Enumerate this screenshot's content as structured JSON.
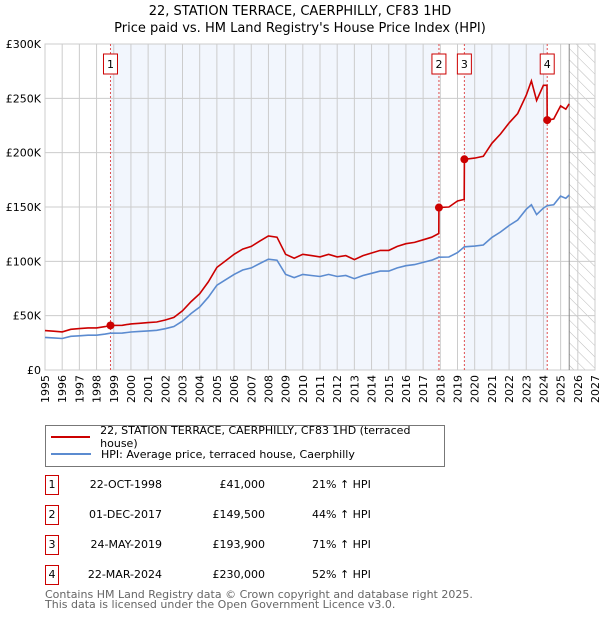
{
  "chart_data": {
    "type": "line",
    "title": "22, STATION TERRACE, CAERPHILLY, CF83 1HD",
    "subtitle": "Price paid vs. HM Land Registry's House Price Index (HPI)",
    "xlim": [
      1995,
      2027
    ],
    "ylim": [
      0,
      300000
    ],
    "x_ticks": [
      "1995",
      "1996",
      "1997",
      "1998",
      "1999",
      "2000",
      "2001",
      "2002",
      "2003",
      "2004",
      "2005",
      "2006",
      "2007",
      "2008",
      "2009",
      "2010",
      "2011",
      "2012",
      "2013",
      "2014",
      "2015",
      "2016",
      "2017",
      "2018",
      "2019",
      "2020",
      "2021",
      "2022",
      "2023",
      "2024",
      "2025",
      "2026",
      "2027"
    ],
    "y_ticks": [
      {
        "v": 0,
        "label": "£0"
      },
      {
        "v": 50000,
        "label": "£50K"
      },
      {
        "v": 100000,
        "label": "£100K"
      },
      {
        "v": 150000,
        "label": "£150K"
      },
      {
        "v": 200000,
        "label": "£200K"
      },
      {
        "v": 250000,
        "label": "£250K"
      },
      {
        "v": 300000,
        "label": "£300K"
      }
    ],
    "grid": true,
    "forecast_from": 2025.5,
    "series": [
      {
        "name": "22, STATION TERRACE, CAERPHILLY, CF83 1HD (terraced house)",
        "color": "#cc0000",
        "points": [
          [
            1995,
            36.3
          ],
          [
            1995.5,
            35.7
          ],
          [
            1996,
            35.1
          ],
          [
            1996.5,
            37.5
          ],
          [
            1997,
            38.1
          ],
          [
            1997.5,
            38.7
          ],
          [
            1998,
            38.7
          ],
          [
            1998.5,
            39.9
          ],
          [
            1998.8,
            41
          ],
          [
            1999.5,
            41.1
          ],
          [
            2000,
            42.4
          ],
          [
            2000.5,
            43
          ],
          [
            2001,
            43.6
          ],
          [
            2001.5,
            44.2
          ],
          [
            2002,
            46
          ],
          [
            2002.5,
            48.4
          ],
          [
            2003,
            54.5
          ],
          [
            2003.5,
            62.9
          ],
          [
            2004,
            70.2
          ],
          [
            2004.5,
            81.1
          ],
          [
            2005,
            94.4
          ],
          [
            2005.5,
            100.4
          ],
          [
            2006,
            106.5
          ],
          [
            2006.5,
            111.3
          ],
          [
            2007,
            113.7
          ],
          [
            2007.5,
            118.6
          ],
          [
            2008,
            123.4
          ],
          [
            2008.5,
            122.2
          ],
          [
            2009,
            106.5
          ],
          [
            2009.5,
            102.9
          ],
          [
            2010,
            106.5
          ],
          [
            2010.5,
            105.3
          ],
          [
            2011,
            104.1
          ],
          [
            2011.5,
            106.5
          ],
          [
            2012,
            104.1
          ],
          [
            2012.5,
            105.3
          ],
          [
            2013,
            101.6
          ],
          [
            2013.5,
            105.3
          ],
          [
            2014,
            107.7
          ],
          [
            2014.5,
            110.1
          ],
          [
            2015,
            110.1
          ],
          [
            2015.5,
            113.7
          ],
          [
            2016,
            116.2
          ],
          [
            2016.5,
            117.4
          ],
          [
            2017,
            119.8
          ],
          [
            2017.5,
            122.2
          ],
          [
            2017.91,
            125.6
          ],
          [
            2017.92,
            149.5
          ],
          [
            2018.5,
            150
          ],
          [
            2019,
            155.5
          ],
          [
            2019.39,
            157
          ],
          [
            2019.4,
            193.9
          ],
          [
            2020,
            195
          ],
          [
            2020.5,
            196.7
          ],
          [
            2021,
            208.6
          ],
          [
            2021.5,
            217.2
          ],
          [
            2022,
            227.4
          ],
          [
            2022.5,
            236
          ],
          [
            2023,
            253
          ],
          [
            2023.3,
            266
          ],
          [
            2023.6,
            248
          ],
          [
            2024,
            262
          ],
          [
            2024.21,
            262
          ],
          [
            2024.22,
            230
          ],
          [
            2024.6,
            231
          ],
          [
            2025,
            243
          ],
          [
            2025.3,
            240
          ],
          [
            2025.5,
            245
          ]
        ]
      },
      {
        "name": "HPI: Average price, terraced house, Caerphilly",
        "color": "#5b8bd0",
        "points": [
          [
            1995,
            30
          ],
          [
            1995.5,
            29.5
          ],
          [
            1996,
            29
          ],
          [
            1996.5,
            31
          ],
          [
            1997,
            31.5
          ],
          [
            1997.5,
            32
          ],
          [
            1998,
            32
          ],
          [
            1998.5,
            33
          ],
          [
            1998.8,
            33.9
          ],
          [
            1999.5,
            34
          ],
          [
            2000,
            35
          ],
          [
            2000.5,
            35.5
          ],
          [
            2001,
            36
          ],
          [
            2001.5,
            36.5
          ],
          [
            2002,
            38
          ],
          [
            2002.5,
            40
          ],
          [
            2003,
            45
          ],
          [
            2003.5,
            52
          ],
          [
            2004,
            58
          ],
          [
            2004.5,
            67
          ],
          [
            2005,
            78
          ],
          [
            2005.5,
            83
          ],
          [
            2006,
            88
          ],
          [
            2006.5,
            92
          ],
          [
            2007,
            94
          ],
          [
            2007.5,
            98
          ],
          [
            2008,
            102
          ],
          [
            2008.5,
            101
          ],
          [
            2009,
            88
          ],
          [
            2009.5,
            85
          ],
          [
            2010,
            88
          ],
          [
            2010.5,
            87
          ],
          [
            2011,
            86
          ],
          [
            2011.5,
            88
          ],
          [
            2012,
            86
          ],
          [
            2012.5,
            87
          ],
          [
            2013,
            84
          ],
          [
            2013.5,
            87
          ],
          [
            2014,
            89
          ],
          [
            2014.5,
            91
          ],
          [
            2015,
            91
          ],
          [
            2015.5,
            94
          ],
          [
            2016,
            96
          ],
          [
            2016.5,
            97
          ],
          [
            2017,
            99
          ],
          [
            2017.5,
            101
          ],
          [
            2017.92,
            103.8
          ],
          [
            2018.5,
            104
          ],
          [
            2019,
            108
          ],
          [
            2019.4,
            113.4
          ],
          [
            2020,
            114
          ],
          [
            2020.5,
            115
          ],
          [
            2021,
            122
          ],
          [
            2021.5,
            127
          ],
          [
            2022,
            133
          ],
          [
            2022.5,
            138
          ],
          [
            2023,
            148
          ],
          [
            2023.3,
            152
          ],
          [
            2023.6,
            143
          ],
          [
            2024,
            149
          ],
          [
            2024.22,
            151.3
          ],
          [
            2024.6,
            152
          ],
          [
            2025,
            160
          ],
          [
            2025.3,
            158
          ],
          [
            2025.5,
            161
          ]
        ]
      }
    ],
    "sales": [
      {
        "num": "1",
        "x": 1998.81,
        "price": 41000,
        "date": "22-OCT-1998",
        "price_label": "£41,000",
        "hpi": "21% ↑ HPI"
      },
      {
        "num": "2",
        "x": 2017.92,
        "price": 149500,
        "date": "01-DEC-2017",
        "price_label": "£149,500",
        "hpi": "44% ↑ HPI"
      },
      {
        "num": "3",
        "x": 2019.4,
        "price": 193900,
        "date": "24-MAY-2019",
        "price_label": "£193,900",
        "hpi": "71% ↑ HPI"
      },
      {
        "num": "4",
        "x": 2024.22,
        "price": 230000,
        "date": "22-MAR-2024",
        "price_label": "£230,000",
        "hpi": "52% ↑ HPI"
      }
    ]
  },
  "legend": {
    "property": "22, STATION TERRACE, CAERPHILLY, CF83 1HD (terraced house)",
    "hpi": "HPI: Average price, terraced house, Caerphilly"
  },
  "footer": {
    "line1": "Contains HM Land Registry data © Crown copyright and database right 2025.",
    "line2": "This data is licensed under the Open Government Licence v3.0."
  }
}
